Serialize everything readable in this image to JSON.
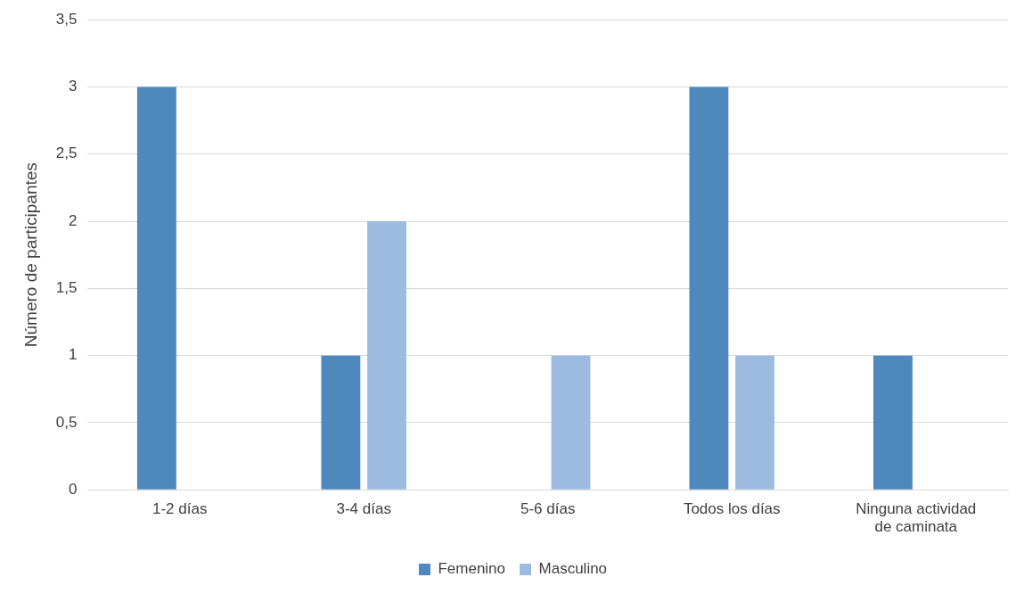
{
  "chart_data": {
    "type": "bar",
    "ylabel": "Número de participantes",
    "categories": [
      "1-2 días",
      "3-4 días",
      "5-6 días",
      "Todos los días",
      "Ninguna actividad de caminata"
    ],
    "series": [
      {
        "name": "Femenino",
        "color": "#4f88bd",
        "values": [
          3,
          1,
          0,
          3,
          1
        ]
      },
      {
        "name": "Masculino",
        "color": "#9dbbe0",
        "values": [
          0,
          2,
          1,
          1,
          0
        ]
      }
    ],
    "ylim": [
      0,
      3.5
    ],
    "yticks": [
      0,
      {
        "value": 0.5,
        "label": "0,5"
      },
      1,
      {
        "value": 1.5,
        "label": "1,5"
      },
      2,
      {
        "value": 2.5,
        "label": "2,5"
      },
      3,
      {
        "value": 3.5,
        "label": "3,5"
      }
    ],
    "grid": "y",
    "legend": "bottom"
  }
}
